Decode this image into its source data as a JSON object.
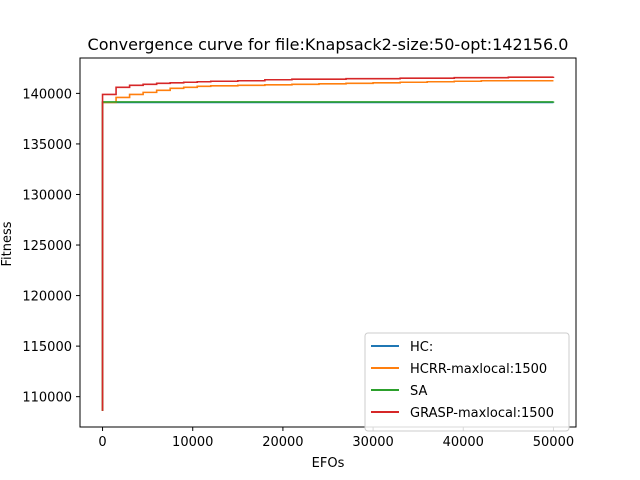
{
  "chart_data": {
    "type": "line",
    "title": "Convergence curve for file:Knapsack2-size:50-opt:142156.0",
    "xlabel": "EFOs",
    "ylabel": "Fitness",
    "xlim": [
      -2500,
      52500
    ],
    "ylim": [
      107000,
      143500
    ],
    "xticks": [
      0,
      10000,
      20000,
      30000,
      40000,
      50000
    ],
    "yticks": [
      110000,
      115000,
      120000,
      125000,
      130000,
      135000,
      140000
    ],
    "grid": false,
    "legend_position": "lower-right",
    "series": [
      {
        "name": "HC:",
        "color": "#1f77b4",
        "step": true,
        "x": [
          0,
          0,
          50000
        ],
        "y": [
          108600,
          139100,
          139100
        ]
      },
      {
        "name": "HCRR-maxlocal:1500",
        "color": "#ff7f0e",
        "step": true,
        "x": [
          0,
          0,
          1500,
          3000,
          4500,
          6000,
          7500,
          9000,
          10500,
          12000,
          15000,
          18000,
          21000,
          24000,
          27000,
          30000,
          33000,
          36000,
          39000,
          42000,
          45000,
          48000,
          50000
        ],
        "y": [
          108600,
          139100,
          139600,
          139900,
          140100,
          140300,
          140500,
          140600,
          140700,
          140750,
          140800,
          140850,
          140900,
          140950,
          141000,
          141050,
          141100,
          141150,
          141200,
          141250,
          141250,
          141250,
          141250
        ]
      },
      {
        "name": "SA",
        "color": "#2ca02c",
        "step": true,
        "x": [
          0,
          0,
          50000
        ],
        "y": [
          108600,
          139150,
          139200
        ]
      },
      {
        "name": "GRASP-maxlocal:1500",
        "color": "#d62728",
        "step": true,
        "x": [
          0,
          0,
          1500,
          3000,
          4500,
          6000,
          7500,
          9000,
          10500,
          12000,
          15000,
          18000,
          21000,
          24000,
          27000,
          30000,
          33000,
          36000,
          39000,
          42000,
          45000,
          48000,
          50000
        ],
        "y": [
          108600,
          139900,
          140600,
          140800,
          140900,
          141000,
          141050,
          141100,
          141150,
          141200,
          141250,
          141350,
          141400,
          141400,
          141450,
          141450,
          141500,
          141500,
          141550,
          141550,
          141600,
          141600,
          141650
        ]
      }
    ]
  }
}
